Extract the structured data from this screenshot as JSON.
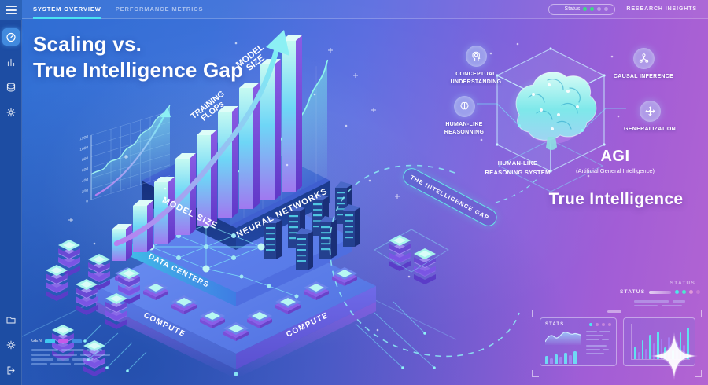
{
  "colors": {
    "accent_cyan": "#4AE3F2",
    "status_green": "#3DDC84",
    "bar_cyan": "#5FE2F0",
    "bar_purple": "#A57CF0"
  },
  "sidebar": {
    "items": [
      {
        "icon": "gauge-icon",
        "active": true
      },
      {
        "icon": "bar-chart-icon",
        "active": false
      },
      {
        "icon": "database-icon",
        "active": false
      },
      {
        "icon": "gear-icon",
        "active": false
      }
    ],
    "footer_items": [
      {
        "icon": "folder-icon"
      },
      {
        "icon": "settings-icon"
      },
      {
        "icon": "logout-icon"
      }
    ]
  },
  "topbar": {
    "tabs": [
      {
        "label": "SYSTEM OVERVIEW",
        "active": true
      },
      {
        "label": "PERFORMANCE METRICS",
        "active": false
      }
    ],
    "status_pill": {
      "label": "Status",
      "dots": [
        "#3DDC84",
        "#3DDC84",
        "rgba(255,255,255,0.35)",
        "rgba(255,255,255,0.35)"
      ]
    },
    "right_link": "RESEARCH INSIGHTS"
  },
  "hero": {
    "title_line1": "Scaling vs.",
    "title_line2": "True Intelligence Gap"
  },
  "scaling_stack": {
    "arrow_label_l1": "MODEL",
    "arrow_label_l2": "SIZE",
    "flops_l1": "TRAINING",
    "flops_l2": "FLOPs",
    "axis_ticks": [
      "1200",
      "1000",
      "800",
      "600",
      "400",
      "200",
      "0"
    ],
    "tier_top_left": "MODEL SIZE",
    "tier_top_right": "NEURAL NETWORKS",
    "tier_mid": "DATA CENTERS",
    "tier_bottom_left": "COMPUTE",
    "tier_bottom_right": "COMPUTE"
  },
  "gap_badge": {
    "label": "THE INTELLIGENCE GAP"
  },
  "agi_side": {
    "features": [
      {
        "icon": "head-profile-icon",
        "label": "CONCEPTUAL UNDERSTANDING"
      },
      {
        "icon": "causal-graph-icon",
        "label": "CAUSAL INFERENCE"
      },
      {
        "icon": "brain-icon",
        "label": "HUMAN-LIKE REASONNING"
      },
      {
        "icon": "expand-arrows-icon",
        "label": "GENERALIZATION"
      }
    ],
    "system_label": "HUMAN-LIKE REASONING SYSTEM",
    "agi_title": "AGI",
    "agi_subtitle": "(Artificial General Intelligence)",
    "caption": "True Intelligence"
  },
  "mini_dashboard": {
    "status_faint": "STATUS",
    "status_label": "STATUS",
    "status_dots": [
      "#4DE8E8",
      "#4DE8CF",
      "#E09AD8",
      "rgba(224,154,216,0.45)"
    ],
    "stats_title": "STATS",
    "stats_head_dots": [
      "#4DE8F0",
      "rgba(240,170,225,0.5)",
      "rgba(240,170,225,0.5)",
      "rgba(240,170,225,0.5)"
    ],
    "stats_bars": {
      "values": [
        10,
        7,
        12,
        9,
        14,
        11,
        16
      ],
      "colors": [
        "#6FD8F4",
        "#9F86F0"
      ],
      "width": 4
    },
    "metric_bars": {
      "values": [
        16,
        9,
        24,
        13,
        31,
        20,
        35,
        26,
        15,
        28,
        11,
        22,
        34,
        18,
        40
      ],
      "colors": [
        "#5FE2F0",
        "#A57CF0"
      ],
      "width": 2.8
    },
    "legend_label": "GEN",
    "legend_chips": [
      "#3FC8F0",
      "#C75AE8",
      "#3F8AE0"
    ]
  }
}
